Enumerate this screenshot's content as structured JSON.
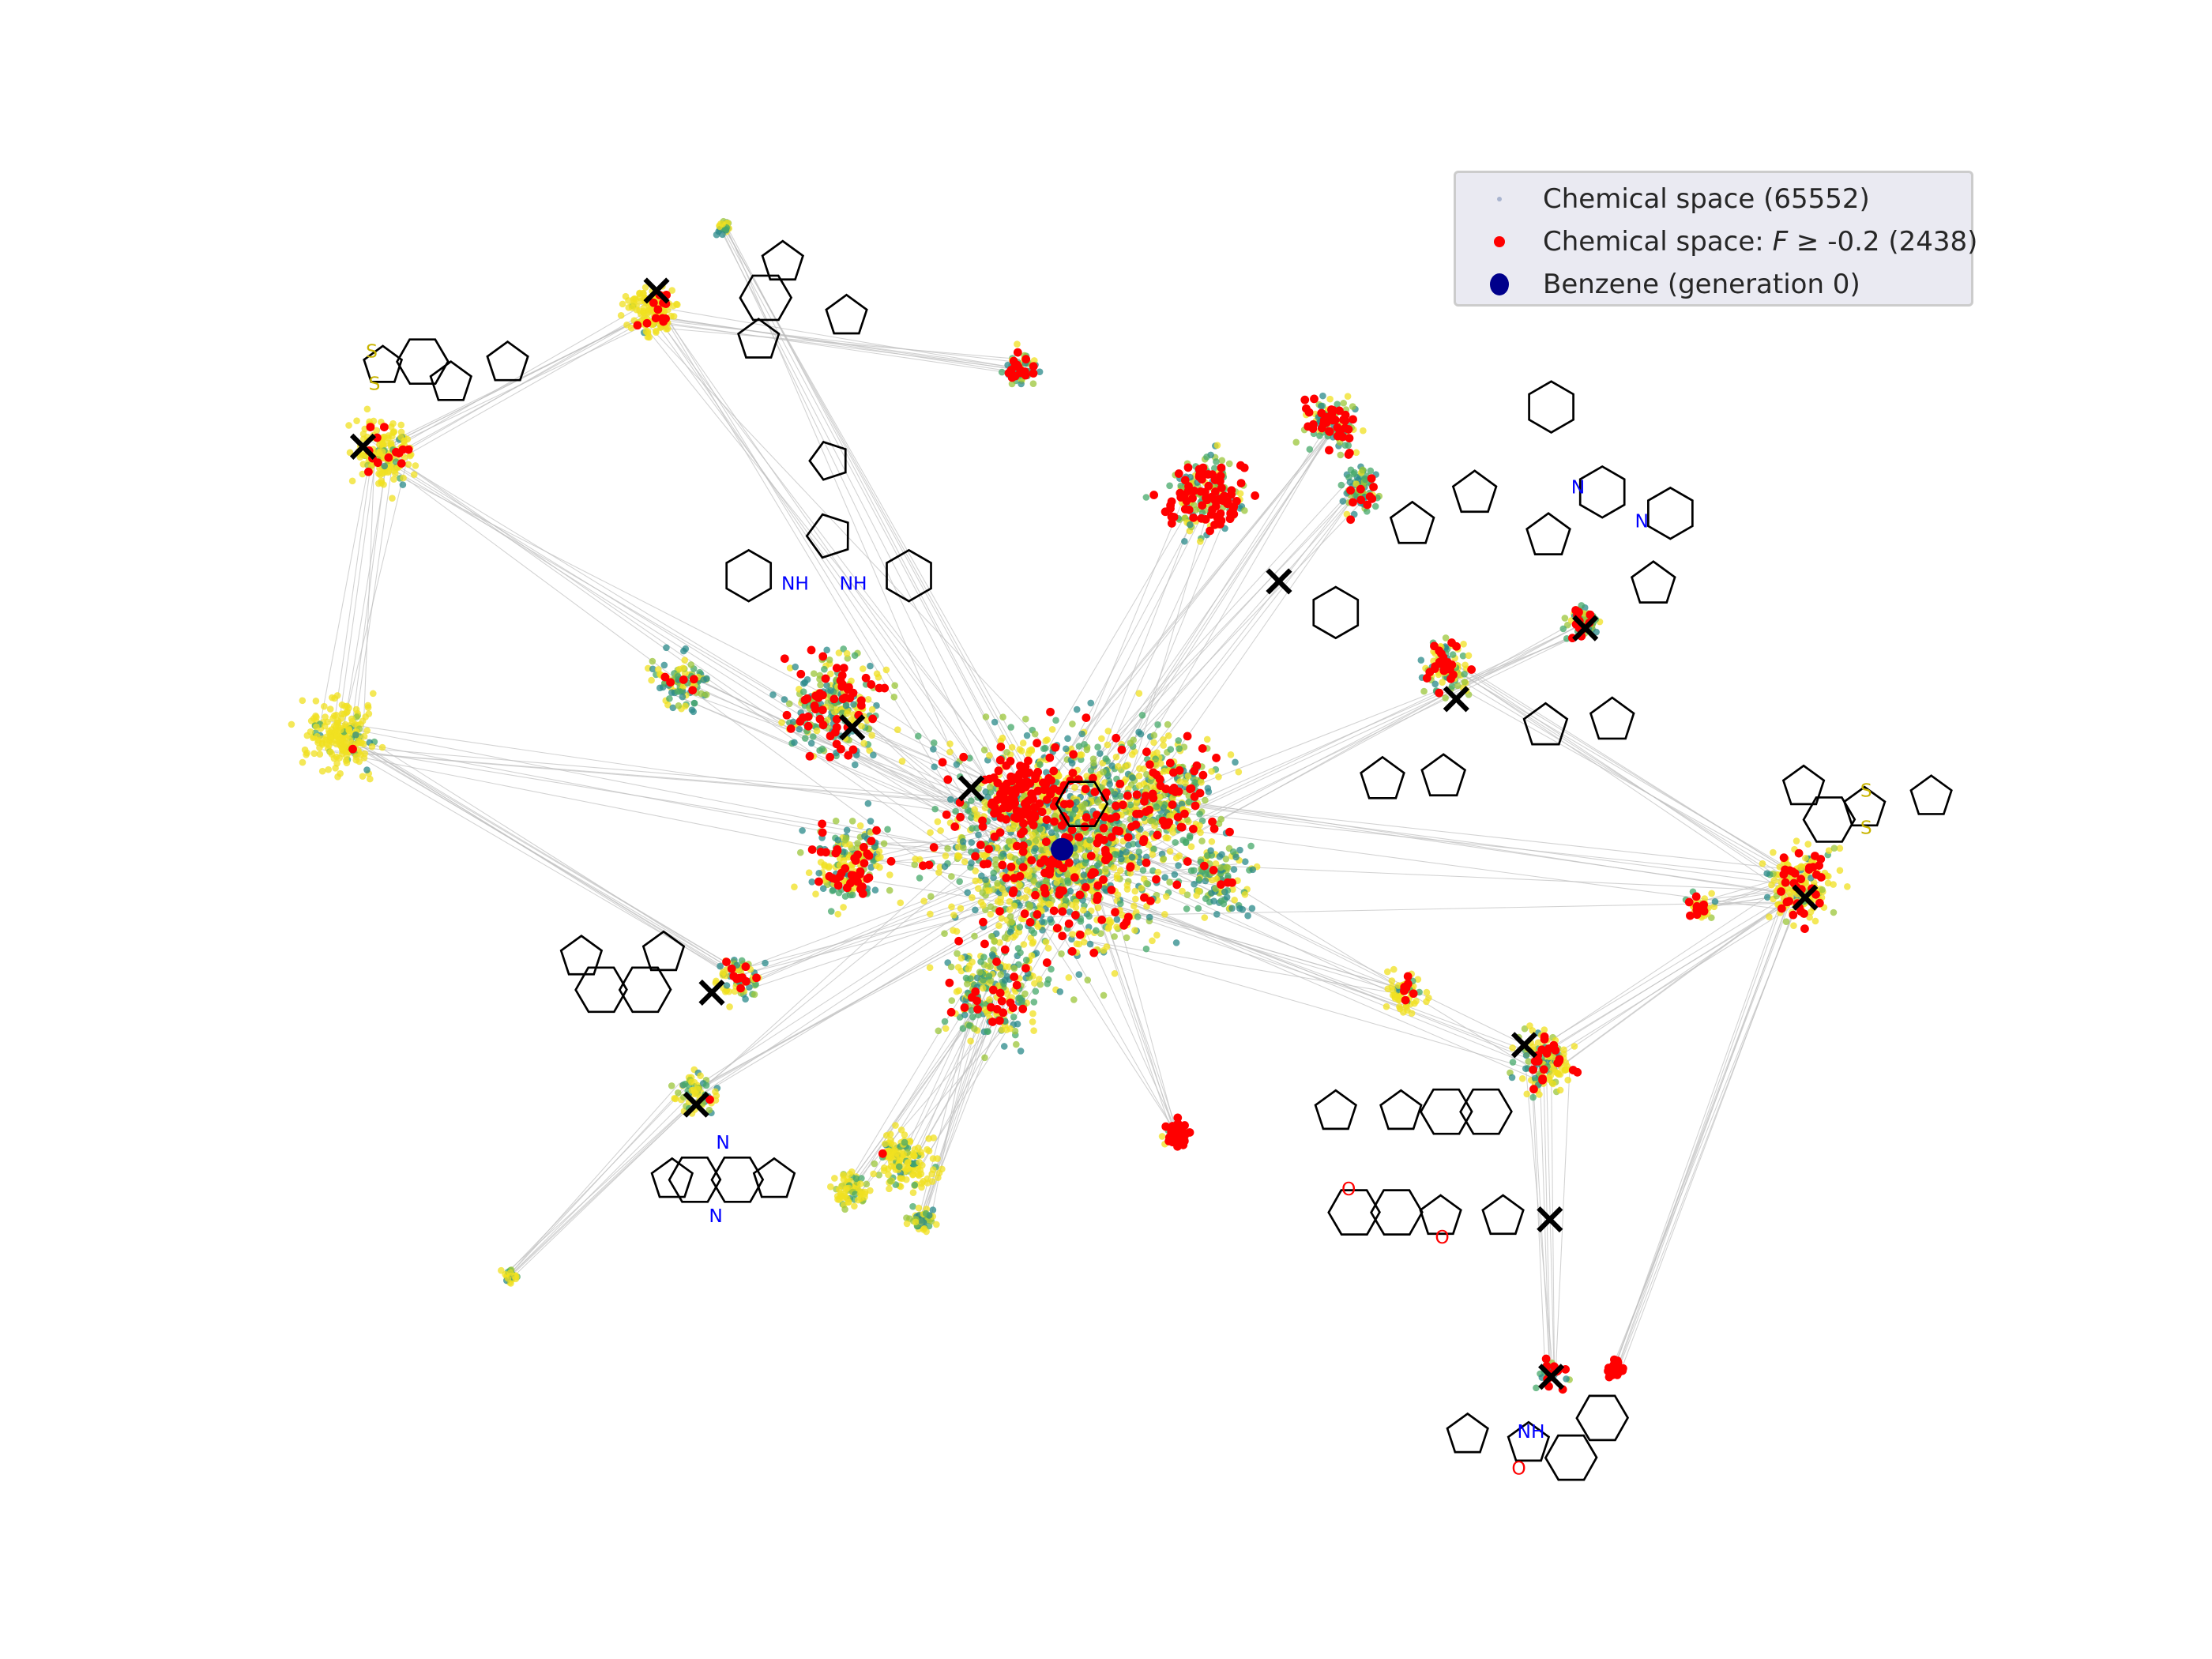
{
  "chart_data": {
    "type": "scatter",
    "title": "",
    "xlabel": "",
    "ylabel": "",
    "grid": false,
    "axes_visible": false,
    "legend_position": "top-right",
    "legend": [
      {
        "label": "Chemical space (65552)",
        "color": "#a9b4cf",
        "marker": "small-dot"
      },
      {
        "label_prefix": "Chemical space: ",
        "label_var": "F",
        "label_suffix": " ≥  -0.2 (2438)",
        "color": "#ff0000",
        "marker": "dot"
      },
      {
        "label": "Benzene (generation 0)",
        "color": "#00008b",
        "marker": "large-dot"
      }
    ],
    "series": [
      {
        "name": "Chemical space",
        "count": 65552,
        "colormap": [
          "#2a8a8a",
          "#45a86a",
          "#9bc63a",
          "#f0e020"
        ],
        "edge_color": "#c0c0c0"
      },
      {
        "name": "Chemical space: F ≥ -0.2",
        "count": 2438,
        "color": "#ff0000"
      },
      {
        "name": "Benzene (generation 0)",
        "count": 1,
        "color": "#00008b"
      }
    ],
    "selected_molecule_markers": 13,
    "marker_symbol": "x",
    "marker_color": "#000000"
  },
  "molecule_labels": {
    "dithiole_indene": [
      "S",
      "S"
    ],
    "dianilino": [
      "NH",
      "NH"
    ],
    "bipyridyl": [
      "N",
      "N"
    ],
    "dithiole_right": [
      "S",
      "S"
    ],
    "diazaphenanthrene": [
      "N",
      "N"
    ],
    "pyranobenzofuran": [
      "O",
      "O"
    ],
    "oxazole": [
      "NH",
      "O"
    ]
  }
}
